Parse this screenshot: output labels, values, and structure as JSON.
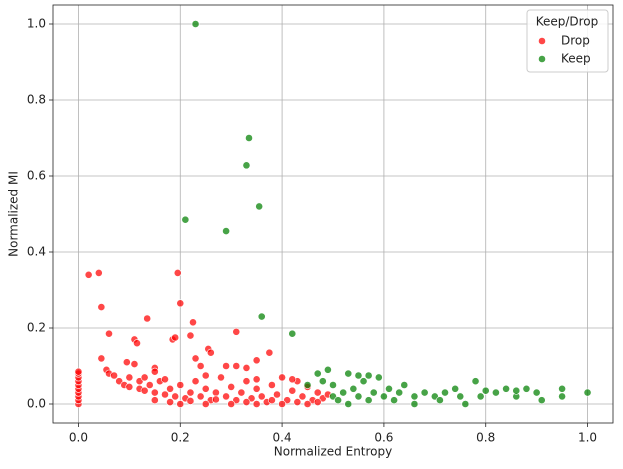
{
  "chart_data": {
    "type": "scatter",
    "x_label": "Normalized Entropy",
    "y_label": "Normalized MI",
    "legend_title": "Keep/Drop",
    "legend_position": "upper right",
    "grid": true,
    "xlim": [
      -0.05,
      1.05
    ],
    "ylim": [
      -0.05,
      1.05
    ],
    "xticks": [
      {
        "value": 0,
        "label": "0.0"
      },
      {
        "value": 0.2,
        "label": "0.2"
      },
      {
        "value": 0.4,
        "label": "0.4"
      },
      {
        "value": 0.6,
        "label": "0.6"
      },
      {
        "value": 0.8,
        "label": "0.8"
      },
      {
        "value": 1,
        "label": "1.0"
      }
    ],
    "yticks": [
      {
        "value": 0,
        "label": "0.0"
      },
      {
        "value": 0.2,
        "label": "0.2"
      },
      {
        "value": 0.4,
        "label": "0.4"
      },
      {
        "value": 0.6,
        "label": "0.6"
      },
      {
        "value": 0.8,
        "label": "0.8"
      },
      {
        "value": 1,
        "label": "1.0"
      }
    ],
    "series": [
      {
        "name": "Drop",
        "color": "red",
        "x": [
          0,
          0,
          0,
          0,
          0,
          0,
          0,
          0,
          0,
          0,
          0.02,
          0.04,
          0.045,
          0.195,
          0.2,
          0.135,
          0.225,
          0.06,
          0.11,
          0.115,
          0.31,
          0.22,
          0.185,
          0.19,
          0.255,
          0.26,
          0.375,
          0.35,
          0.045,
          0.095,
          0.11,
          0.23,
          0.24,
          0.29,
          0.31,
          0.33,
          0.15,
          0.15,
          0.055,
          0.06,
          0.07,
          0.08,
          0.09,
          0.1,
          0.1,
          0.12,
          0.12,
          0.13,
          0.14,
          0.15,
          0.16,
          0.17,
          0.18,
          0.19,
          0.2,
          0.21,
          0.22,
          0.23,
          0.24,
          0.25,
          0.26,
          0.27,
          0.28,
          0.29,
          0.3,
          0.31,
          0.32,
          0.33,
          0.34,
          0.35,
          0.36,
          0.37,
          0.38,
          0.39,
          0.4,
          0.41,
          0.42,
          0.43,
          0.44,
          0.45,
          0.46,
          0.47,
          0.48,
          0.49,
          0.2,
          0.25,
          0.3,
          0.35,
          0.4,
          0.45,
          0.15,
          0.18,
          0.22,
          0.27,
          0.33,
          0.38,
          0.43,
          0.47,
          0.13,
          0.17,
          0.25,
          0.35,
          0.42
        ],
        "values": [
          0,
          0.01,
          0.02,
          0.03,
          0.04,
          0.05,
          0.06,
          0.07,
          0.08,
          0.085,
          0.34,
          0.345,
          0.255,
          0.345,
          0.265,
          0.225,
          0.215,
          0.185,
          0.17,
          0.16,
          0.19,
          0.18,
          0.17,
          0.175,
          0.145,
          0.135,
          0.135,
          0.115,
          0.12,
          0.11,
          0.105,
          0.12,
          0.1,
          0.1,
          0.1,
          0.095,
          0.095,
          0.085,
          0.09,
          0.08,
          0.075,
          0.06,
          0.05,
          0.045,
          0.07,
          0.04,
          0.06,
          0.035,
          0.05,
          0.03,
          0.06,
          0.025,
          0.04,
          0.02,
          0.05,
          0.015,
          0.03,
          0.06,
          0.02,
          0.04,
          0.01,
          0.03,
          0.07,
          0.02,
          0.045,
          0.01,
          0.03,
          0.06,
          0.015,
          0.04,
          0.02,
          0.005,
          0.05,
          0.025,
          0.07,
          0.01,
          0.035,
          0.06,
          0.02,
          0.045,
          0.01,
          0.03,
          0.015,
          0.025,
          0,
          0,
          0,
          0,
          0,
          0,
          0.01,
          0.005,
          0.008,
          0.012,
          0.005,
          0.01,
          0.005,
          0.005,
          0.07,
          0.065,
          0.075,
          0.065,
          0.065
        ]
      },
      {
        "name": "Keep",
        "color": "green",
        "x": [
          0.23,
          0.335,
          0.33,
          0.355,
          0.21,
          0.29,
          0.36,
          0.42,
          0.5,
          0.5,
          0.51,
          0.52,
          0.53,
          0.54,
          0.55,
          0.56,
          0.57,
          0.58,
          0.59,
          0.6,
          0.61,
          0.62,
          0.63,
          0.64,
          0.66,
          0.66,
          0.68,
          0.7,
          0.71,
          0.72,
          0.74,
          0.75,
          0.76,
          0.78,
          0.79,
          0.8,
          0.82,
          0.84,
          0.86,
          0.86,
          0.88,
          0.9,
          0.91,
          0.95,
          0.95,
          1.0,
          0.49,
          0.47,
          0.53,
          0.55,
          0.57,
          0.48,
          0.45
        ],
        "values": [
          1.0,
          0.7,
          0.628,
          0.52,
          0.485,
          0.455,
          0.23,
          0.185,
          0.02,
          0.05,
          0.01,
          0.03,
          0,
          0.04,
          0.02,
          0.06,
          0.01,
          0.03,
          0.07,
          0.02,
          0.04,
          0.01,
          0.03,
          0.05,
          0.02,
          0,
          0.03,
          0.02,
          0.01,
          0.03,
          0.04,
          0.02,
          0,
          0.06,
          0.02,
          0.035,
          0.03,
          0.04,
          0.02,
          0.035,
          0.04,
          0.03,
          0.01,
          0.04,
          0.02,
          0.03,
          0.09,
          0.08,
          0.08,
          0.075,
          0.075,
          0.06,
          0.05
        ]
      }
    ]
  }
}
